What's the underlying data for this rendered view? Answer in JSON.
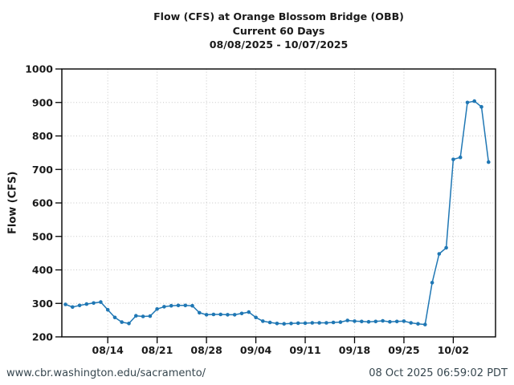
{
  "header": {
    "title_line1": "Flow (CFS) at Orange Blossom Bridge (OBB)",
    "title_line2": "Current 60 Days",
    "title_line3": "08/08/2025 - 10/07/2025"
  },
  "footer": {
    "url": "www.cbr.washington.edu/sacramento/",
    "timestamp": "08 Oct 2025 06:59:02 PDT"
  },
  "chart_data": {
    "type": "line",
    "title": "Flow (CFS) at Orange Blossom Bridge (OBB)",
    "subtitle": "Current 60 Days",
    "date_range": "08/08/2025 - 10/07/2025",
    "xlabel": "",
    "ylabel": "Flow (CFS)",
    "ylim": [
      200,
      1000
    ],
    "yticks": [
      200,
      300,
      400,
      500,
      600,
      700,
      800,
      900,
      1000
    ],
    "xtick_labels": [
      "08/14",
      "08/21",
      "08/28",
      "09/04",
      "09/11",
      "09/18",
      "09/25",
      "10/02"
    ],
    "grid": "dotted",
    "legend_position": "none",
    "line_color": "#1f77b4",
    "grid_color": "#c7c7c7",
    "spine_color": "#000000",
    "marker": "circle",
    "dates": [
      "08/08",
      "08/09",
      "08/10",
      "08/11",
      "08/12",
      "08/13",
      "08/14",
      "08/15",
      "08/16",
      "08/17",
      "08/18",
      "08/19",
      "08/20",
      "08/21",
      "08/22",
      "08/23",
      "08/24",
      "08/25",
      "08/26",
      "08/27",
      "08/28",
      "08/29",
      "08/30",
      "08/31",
      "09/01",
      "09/02",
      "09/03",
      "09/04",
      "09/05",
      "09/06",
      "09/07",
      "09/08",
      "09/09",
      "09/10",
      "09/11",
      "09/12",
      "09/13",
      "09/14",
      "09/15",
      "09/16",
      "09/17",
      "09/18",
      "09/19",
      "09/20",
      "09/21",
      "09/22",
      "09/23",
      "09/24",
      "09/25",
      "09/26",
      "09/27",
      "09/28",
      "09/29",
      "09/30",
      "10/01",
      "10/02",
      "10/03",
      "10/04",
      "10/05",
      "10/06",
      "10/07"
    ],
    "values": [
      297,
      289,
      294,
      298,
      301,
      304,
      281,
      258,
      244,
      240,
      263,
      261,
      262,
      283,
      290,
      293,
      294,
      294,
      293,
      272,
      266,
      267,
      267,
      266,
      266,
      270,
      274,
      258,
      247,
      243,
      240,
      239,
      240,
      241,
      241,
      242,
      242,
      242,
      243,
      244,
      249,
      247,
      246,
      245,
      246,
      248,
      245,
      246,
      247,
      242,
      239,
      237,
      362,
      448,
      466,
      730,
      736,
      900,
      904,
      887,
      722
    ]
  }
}
